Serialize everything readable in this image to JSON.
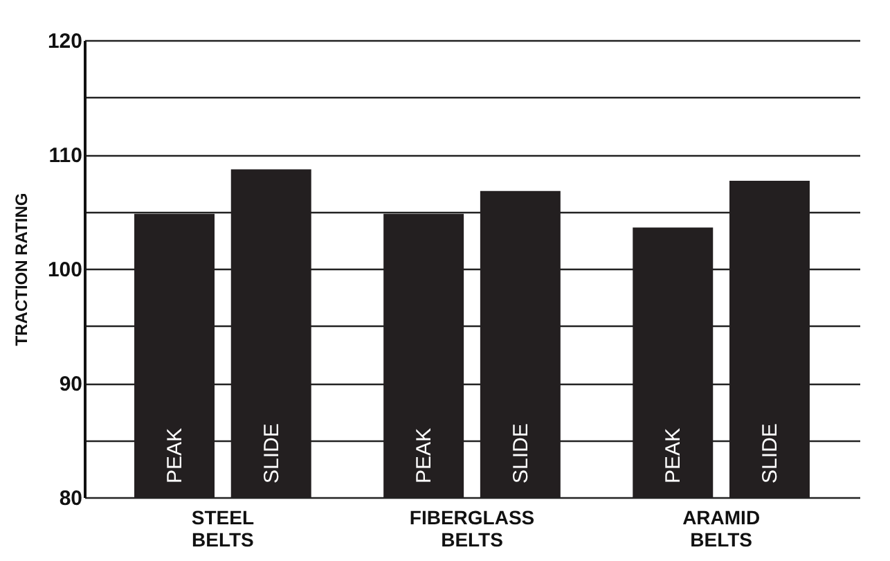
{
  "chart_data": {
    "type": "bar",
    "ylabel": "TRACTION RATING",
    "categories": [
      "STEEL BELTS",
      "FIBERGLASS BELTS",
      "ARAMID BELTS"
    ],
    "series": [
      {
        "name": "PEAK",
        "color": "#231f20",
        "values": [
          104.8,
          104.8,
          103.6
        ]
      },
      {
        "name": "SLIDE",
        "color": "#231f20",
        "values": [
          108.7,
          106.8,
          107.7
        ]
      }
    ],
    "ylim": [
      80,
      120
    ],
    "yticks": [
      80,
      {
        "value": 85,
        "label": null
      },
      90,
      {
        "value": 95,
        "label": null
      },
      100,
      {
        "value": 105,
        "label": null
      },
      110,
      {
        "value": 115,
        "label": null
      },
      120
    ],
    "grid": "y",
    "legend": false
  }
}
